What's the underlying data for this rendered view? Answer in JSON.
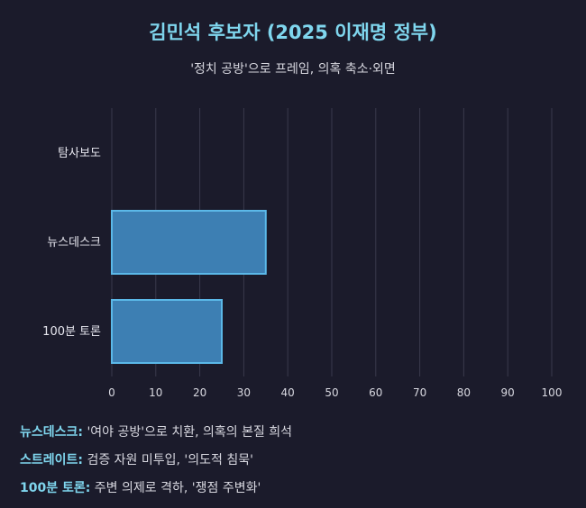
{
  "title": "김민석 후보자 (2025 이재명 정부)",
  "subtitle": "'정치 공방'으로 프레임, 의혹 축소·외면",
  "chart_data": {
    "type": "bar",
    "orientation": "horizontal",
    "categories": [
      "탐사보도",
      "뉴스데스크",
      "100분 토론"
    ],
    "values": [
      0,
      35,
      25
    ],
    "xlim": [
      0,
      100
    ],
    "xticks": [
      "0",
      "10",
      "20",
      "30",
      "40",
      "50",
      "60",
      "70",
      "80",
      "90",
      "100"
    ],
    "grid": true,
    "bar_color": "#3d7fb3",
    "bar_edge_color": "#5bb8e8"
  },
  "notes": [
    {
      "label": "뉴스데스크:",
      "text": " '여야 공방'으로 치환, 의혹의 본질 희석"
    },
    {
      "label": "스트레이트:",
      "text": " 검증 자원 미투입, '의도적 침묵'"
    },
    {
      "label": "100분 토론:",
      "text": " 주변 의제로 격하, '쟁점 주변화'"
    }
  ],
  "colors": {
    "background": "#1b1b2b",
    "title": "#7fd6ee",
    "grid": "#3a3a4c"
  }
}
